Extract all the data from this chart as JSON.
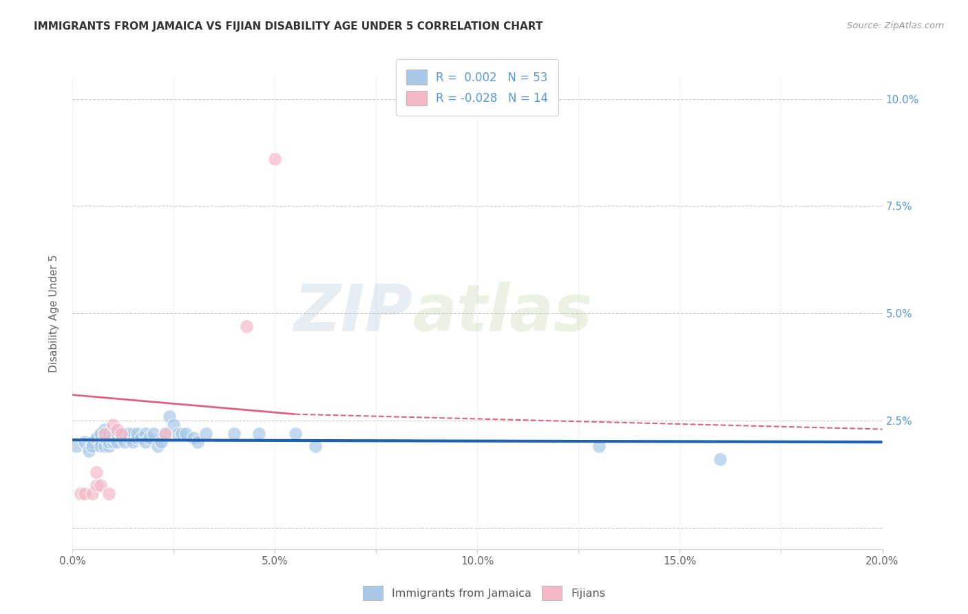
{
  "title": "IMMIGRANTS FROM JAMAICA VS FIJIAN DISABILITY AGE UNDER 5 CORRELATION CHART",
  "source": "Source: ZipAtlas.com",
  "ylabel": "Disability Age Under 5",
  "xlim": [
    0.0,
    0.2
  ],
  "ylim": [
    -0.005,
    0.105
  ],
  "xticks": [
    0.0,
    0.05,
    0.1,
    0.15,
    0.2
  ],
  "yticks": [
    0.0,
    0.025,
    0.05,
    0.075,
    0.1
  ],
  "ytick_labels": [
    "",
    "2.5%",
    "5.0%",
    "7.5%",
    "10.0%"
  ],
  "xtick_labels": [
    "0.0%",
    "",
    "5.0%",
    "",
    "10.0%",
    "",
    "15.0%",
    "",
    "20.0%"
  ],
  "xticks_all": [
    0.0,
    0.025,
    0.05,
    0.075,
    0.1,
    0.125,
    0.15,
    0.175,
    0.2
  ],
  "blue_color": "#a8c8e8",
  "pink_color": "#f4b8c8",
  "line_blue": "#2060b0",
  "line_pink": "#e06080",
  "watermark_zip": "ZIP",
  "watermark_atlas": "atlas",
  "jamaica_points": [
    [
      0.001,
      0.019
    ],
    [
      0.003,
      0.02
    ],
    [
      0.004,
      0.018
    ],
    [
      0.005,
      0.02
    ],
    [
      0.005,
      0.019
    ],
    [
      0.006,
      0.021
    ],
    [
      0.007,
      0.02
    ],
    [
      0.007,
      0.019
    ],
    [
      0.007,
      0.022
    ],
    [
      0.008,
      0.019
    ],
    [
      0.008,
      0.021
    ],
    [
      0.008,
      0.023
    ],
    [
      0.009,
      0.019
    ],
    [
      0.009,
      0.02
    ],
    [
      0.009,
      0.022
    ],
    [
      0.01,
      0.02
    ],
    [
      0.01,
      0.022
    ],
    [
      0.01,
      0.021
    ],
    [
      0.011,
      0.021
    ],
    [
      0.011,
      0.022
    ],
    [
      0.011,
      0.02
    ],
    [
      0.012,
      0.021
    ],
    [
      0.012,
      0.022
    ],
    [
      0.013,
      0.022
    ],
    [
      0.013,
      0.02
    ],
    [
      0.014,
      0.022
    ],
    [
      0.014,
      0.021
    ],
    [
      0.015,
      0.022
    ],
    [
      0.015,
      0.02
    ],
    [
      0.016,
      0.021
    ],
    [
      0.016,
      0.022
    ],
    [
      0.017,
      0.021
    ],
    [
      0.018,
      0.022
    ],
    [
      0.018,
      0.02
    ],
    [
      0.019,
      0.021
    ],
    [
      0.02,
      0.022
    ],
    [
      0.021,
      0.019
    ],
    [
      0.022,
      0.02
    ],
    [
      0.023,
      0.022
    ],
    [
      0.024,
      0.026
    ],
    [
      0.025,
      0.024
    ],
    [
      0.026,
      0.022
    ],
    [
      0.027,
      0.022
    ],
    [
      0.028,
      0.022
    ],
    [
      0.03,
      0.021
    ],
    [
      0.031,
      0.02
    ],
    [
      0.033,
      0.022
    ],
    [
      0.04,
      0.022
    ],
    [
      0.046,
      0.022
    ],
    [
      0.055,
      0.022
    ],
    [
      0.06,
      0.019
    ],
    [
      0.13,
      0.019
    ],
    [
      0.16,
      0.016
    ]
  ],
  "fijian_points": [
    [
      0.002,
      0.008
    ],
    [
      0.003,
      0.008
    ],
    [
      0.005,
      0.008
    ],
    [
      0.006,
      0.01
    ],
    [
      0.006,
      0.013
    ],
    [
      0.007,
      0.01
    ],
    [
      0.008,
      0.022
    ],
    [
      0.009,
      0.008
    ],
    [
      0.01,
      0.024
    ],
    [
      0.011,
      0.023
    ],
    [
      0.012,
      0.022
    ],
    [
      0.023,
      0.022
    ],
    [
      0.043,
      0.047
    ],
    [
      0.05,
      0.086
    ]
  ],
  "jamaica_trendline_solid": [
    [
      0.0,
      0.0205
    ],
    [
      0.2,
      0.02
    ]
  ],
  "fijian_trendline_solid": [
    [
      0.0,
      0.031
    ],
    [
      0.055,
      0.0265
    ]
  ],
  "fijian_trendline_dashed": [
    [
      0.055,
      0.0265
    ],
    [
      0.2,
      0.023
    ]
  ]
}
